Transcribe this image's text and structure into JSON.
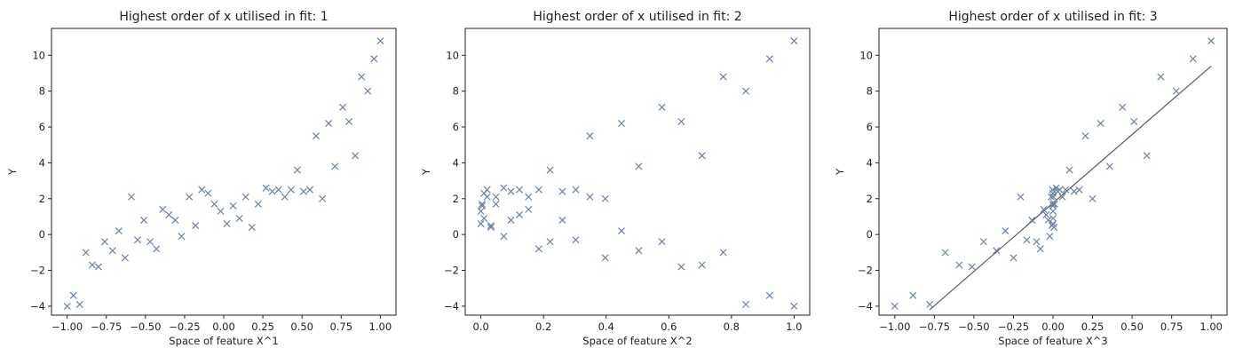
{
  "colors": {
    "marker": "#6a83a3",
    "fit_line": "#5a5a5a",
    "axes": "#222222"
  },
  "chart_data": [
    {
      "type": "scatter",
      "title": "Highest order of x utilised in fit: 1",
      "xlabel": "Space of feature X^1",
      "ylabel": "Y",
      "xlim": [
        -1.1,
        1.1
      ],
      "ylim": [
        -4.5,
        11.5
      ],
      "xticks": [
        -1.0,
        -0.75,
        -0.5,
        -0.25,
        0.0,
        0.25,
        0.5,
        0.75,
        1.0
      ],
      "xtick_labels": [
        "−1.00",
        "−0.75",
        "−0.50",
        "−0.25",
        "0.00",
        "0.25",
        "0.50",
        "0.75",
        "1.00"
      ],
      "yticks": [
        -4,
        -2,
        0,
        2,
        4,
        6,
        8,
        10
      ],
      "ytick_labels": [
        "−4",
        "−2",
        "0",
        "2",
        "4",
        "6",
        "8",
        "10"
      ],
      "grid": false,
      "marker": "x",
      "x": [
        -1.0,
        -0.96,
        -0.92,
        -0.88,
        -0.84,
        -0.8,
        -0.76,
        -0.71,
        -0.67,
        -0.63,
        -0.59,
        -0.55,
        -0.51,
        -0.47,
        -0.43,
        -0.39,
        -0.35,
        -0.31,
        -0.27,
        -0.22,
        -0.18,
        -0.14,
        -0.1,
        -0.06,
        -0.02,
        0.02,
        0.06,
        0.1,
        0.14,
        0.18,
        0.22,
        0.27,
        0.31,
        0.35,
        0.39,
        0.43,
        0.47,
        0.51,
        0.55,
        0.59,
        0.63,
        0.67,
        0.71,
        0.76,
        0.8,
        0.84,
        0.88,
        0.92,
        0.96,
        1.0
      ],
      "y": [
        -4.0,
        -3.4,
        -3.9,
        -1.0,
        -1.7,
        -1.8,
        -0.4,
        -0.9,
        0.2,
        -1.3,
        2.1,
        -0.3,
        0.8,
        -0.4,
        -0.8,
        1.4,
        1.1,
        0.8,
        -0.1,
        2.1,
        0.5,
        2.5,
        2.3,
        1.7,
        1.3,
        0.6,
        1.6,
        0.9,
        2.1,
        0.4,
        1.7,
        2.6,
        2.4,
        2.5,
        2.1,
        2.5,
        3.6,
        2.4,
        2.5,
        5.5,
        2.0,
        6.2,
        3.8,
        7.1,
        6.3,
        4.4,
        8.8,
        8.0,
        9.8,
        10.8
      ]
    },
    {
      "type": "scatter",
      "title": "Highest order of x utilised in fit: 2",
      "xlabel": "Space of feature X^2",
      "ylabel": "Y",
      "xlim": [
        -0.05,
        1.05
      ],
      "ylim": [
        -4.5,
        11.5
      ],
      "xticks": [
        0.0,
        0.2,
        0.4,
        0.6,
        0.8,
        1.0
      ],
      "xtick_labels": [
        "0.0",
        "0.2",
        "0.4",
        "0.6",
        "0.8",
        "1.0"
      ],
      "yticks": [
        -4,
        -2,
        0,
        2,
        4,
        6,
        8,
        10
      ],
      "ytick_labels": [
        "−4",
        "−2",
        "0",
        "2",
        "4",
        "6",
        "8",
        "10"
      ],
      "grid": false,
      "marker": "x",
      "x": [
        1.0,
        0.922,
        0.846,
        0.774,
        0.706,
        0.64,
        0.578,
        0.504,
        0.449,
        0.397,
        0.348,
        0.303,
        0.26,
        0.221,
        0.185,
        0.152,
        0.123,
        0.096,
        0.073,
        0.048,
        0.032,
        0.02,
        0.01,
        0.004,
        0.0,
        0.0,
        0.004,
        0.01,
        0.02,
        0.032,
        0.048,
        0.073,
        0.096,
        0.123,
        0.152,
        0.185,
        0.221,
        0.26,
        0.303,
        0.348,
        0.397,
        0.449,
        0.504,
        0.578,
        0.64,
        0.706,
        0.774,
        0.846,
        0.922,
        1.0
      ],
      "y": [
        -4.0,
        -3.4,
        -3.9,
        -1.0,
        -1.7,
        -1.8,
        -0.4,
        -0.9,
        0.2,
        -1.3,
        2.1,
        -0.3,
        0.8,
        -0.4,
        -0.8,
        1.4,
        1.1,
        0.8,
        -0.1,
        2.1,
        0.5,
        2.5,
        2.3,
        1.7,
        1.3,
        0.6,
        1.6,
        0.9,
        2.1,
        0.4,
        1.7,
        2.6,
        2.4,
        2.5,
        2.1,
        2.5,
        3.6,
        2.4,
        2.5,
        5.5,
        2.0,
        6.2,
        3.8,
        7.1,
        6.3,
        4.4,
        8.8,
        8.0,
        9.8,
        10.8
      ]
    },
    {
      "type": "scatter",
      "title": "Highest order of x utilised in fit: 3",
      "xlabel": "Space of feature X^3",
      "ylabel": "Y",
      "xlim": [
        -1.1,
        1.1
      ],
      "ylim": [
        -4.5,
        11.5
      ],
      "xticks": [
        -1.0,
        -0.75,
        -0.5,
        -0.25,
        0.0,
        0.25,
        0.5,
        0.75,
        1.0
      ],
      "xtick_labels": [
        "−1.00",
        "−0.75",
        "−0.50",
        "−0.25",
        "0.00",
        "0.25",
        "0.50",
        "0.75",
        "1.00"
      ],
      "yticks": [
        -4,
        -2,
        0,
        2,
        4,
        6,
        8,
        10
      ],
      "ytick_labels": [
        "−4",
        "−2",
        "0",
        "2",
        "4",
        "6",
        "8",
        "10"
      ],
      "grid": false,
      "marker": "x",
      "x": [
        -1.0,
        -0.885,
        -0.779,
        -0.681,
        -0.593,
        -0.512,
        -0.439,
        -0.358,
        -0.301,
        -0.25,
        -0.205,
        -0.166,
        -0.133,
        -0.104,
        -0.08,
        -0.059,
        -0.043,
        -0.03,
        -0.02,
        -0.011,
        -0.006,
        -0.003,
        -0.001,
        0.0,
        0.0,
        0.0,
        0.0,
        0.001,
        0.003,
        0.006,
        0.011,
        0.02,
        0.03,
        0.043,
        0.059,
        0.08,
        0.104,
        0.133,
        0.166,
        0.205,
        0.25,
        0.301,
        0.358,
        0.439,
        0.512,
        0.593,
        0.681,
        0.779,
        0.885,
        1.0
      ],
      "y": [
        -4.0,
        -3.4,
        -3.9,
        -1.0,
        -1.7,
        -1.8,
        -0.4,
        -0.9,
        0.2,
        -1.3,
        2.1,
        -0.3,
        0.8,
        -0.4,
        -0.8,
        1.4,
        1.1,
        0.8,
        -0.1,
        2.1,
        0.5,
        2.5,
        2.3,
        1.7,
        1.3,
        0.6,
        1.6,
        0.9,
        2.1,
        0.4,
        1.7,
        2.6,
        2.4,
        2.5,
        2.1,
        2.5,
        3.6,
        2.4,
        2.5,
        5.5,
        2.0,
        6.2,
        3.8,
        7.1,
        6.3,
        4.4,
        8.8,
        8.0,
        9.8,
        10.8
      ],
      "fit_line": {
        "x": [
          -0.78,
          1.0
        ],
        "y": [
          -4.2,
          9.4
        ]
      }
    }
  ]
}
